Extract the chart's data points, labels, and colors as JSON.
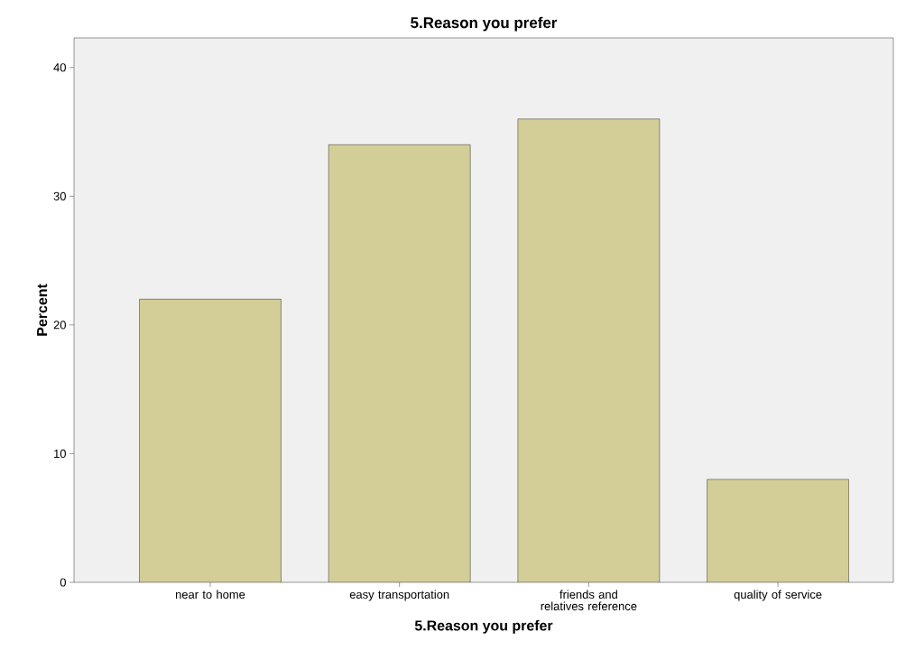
{
  "chart_data": {
    "type": "bar",
    "title": "5.Reason you prefer",
    "xlabel": "5.Reason you prefer",
    "ylabel": "Percent",
    "categories": [
      "near to home",
      "easy transportation",
      "friends and relatives reference",
      "quality of service"
    ],
    "values": [
      22,
      34,
      36,
      8
    ],
    "color": "#d3ce97",
    "ylim": [
      0,
      42.3
    ],
    "yticks": [
      0,
      10,
      20,
      30,
      40
    ]
  }
}
